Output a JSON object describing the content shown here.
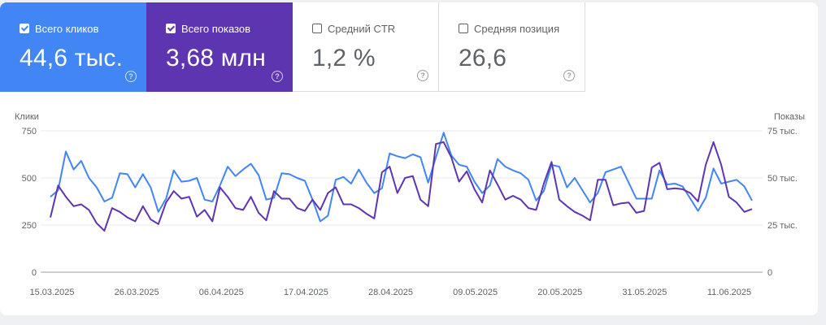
{
  "metrics": [
    {
      "label": "Всего кликов",
      "value": "44,6 тыс.",
      "active": true,
      "color": "#4285f4"
    },
    {
      "label": "Всего показов",
      "value": "3,68 млн",
      "active": true,
      "color": "#5e35b1"
    },
    {
      "label": "Средний CTR",
      "value": "1,2 %",
      "active": false
    },
    {
      "label": "Средняя позиция",
      "value": "26,6",
      "active": false
    }
  ],
  "help_icon": "?",
  "chart_data": {
    "type": "line",
    "left_axis": {
      "label": "Клики",
      "ticks": [
        "750",
        "500",
        "250",
        "0"
      ],
      "ylim": [
        0,
        750
      ]
    },
    "right_axis": {
      "label": "Показы",
      "ticks": [
        "75 тыс.",
        "50 тыс.",
        "25 тыс.",
        "0"
      ],
      "ylim": [
        0,
        75000
      ]
    },
    "x_labels": [
      "15.03.2025",
      "26.03.2025",
      "06.04.2025",
      "17.04.2025",
      "28.04.2025",
      "09.05.2025",
      "20.05.2025",
      "31.05.2025",
      "11.06.2025"
    ],
    "grid": true,
    "series": [
      {
        "axis": "left",
        "color": "#4285f4",
        "values": [
          400,
          435,
          640,
          545,
          590,
          500,
          450,
          375,
          395,
          525,
          520,
          450,
          520,
          450,
          320,
          390,
          540,
          480,
          485,
          500,
          385,
          375,
          460,
          560,
          510,
          545,
          575,
          515,
          385,
          395,
          525,
          520,
          500,
          485,
          385,
          270,
          300,
          490,
          505,
          470,
          545,
          475,
          420,
          445,
          630,
          615,
          605,
          625,
          610,
          475,
          610,
          740,
          620,
          570,
          560,
          480,
          420,
          460,
          600,
          560,
          540,
          525,
          490,
          380,
          430,
          570,
          560,
          450,
          500,
          435,
          370,
          420,
          530,
          545,
          560,
          475,
          390,
          390,
          390,
          540,
          465,
          470,
          455,
          390,
          325,
          395,
          550,
          470,
          480,
          490,
          455,
          380
        ]
      },
      {
        "axis": "right",
        "color": "#5e35b1",
        "values": [
          29000,
          46000,
          40000,
          35000,
          36000,
          33000,
          26000,
          22000,
          34000,
          32000,
          29000,
          27000,
          35000,
          28000,
          25500,
          37000,
          43000,
          39000,
          40000,
          29500,
          33000,
          27000,
          45000,
          40000,
          34000,
          33000,
          40000,
          31500,
          27500,
          43000,
          39000,
          39000,
          34000,
          32500,
          38500,
          33000,
          42000,
          45000,
          36000,
          36000,
          34000,
          31000,
          28500,
          53000,
          56000,
          42000,
          50000,
          51000,
          38500,
          35000,
          68000,
          69000,
          61000,
          48000,
          53500,
          44000,
          37000,
          54000,
          46500,
          38500,
          40500,
          38500,
          34000,
          33000,
          47000,
          58500,
          38500,
          35000,
          32000,
          30000,
          27500,
          49000,
          49000,
          35500,
          36500,
          37000,
          31500,
          32500,
          55500,
          58000,
          44000,
          44500,
          44000,
          42000,
          37500,
          57000,
          69000,
          57000,
          40000,
          37000,
          32000,
          33500
        ]
      }
    ]
  }
}
